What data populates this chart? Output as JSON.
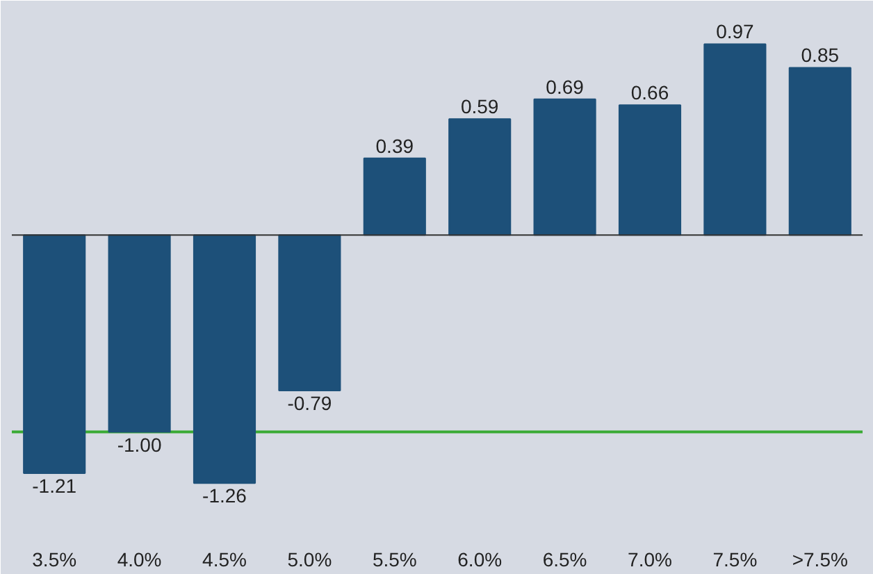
{
  "chart_data": {
    "type": "bar",
    "categories": [
      "3.5%",
      "4.0%",
      "4.5%",
      "5.0%",
      "5.5%",
      "6.0%",
      "6.5%",
      "7.0%",
      "7.5%",
      ">7.5%"
    ],
    "values": [
      -1.21,
      -1.0,
      -1.26,
      -0.79,
      0.39,
      0.59,
      0.69,
      0.66,
      0.97,
      0.85
    ],
    "value_labels": [
      "-1.21",
      "-1.00",
      "-1.26",
      "-0.79",
      "0.39",
      "0.59",
      "0.69",
      "0.66",
      "0.97",
      "0.85"
    ],
    "color": "#1d5079",
    "ylim": [
      -1.45,
      1.12
    ],
    "grid": false,
    "ref_lines": [
      {
        "axis": "y",
        "value": -1.0,
        "label": null,
        "color": "#3aaa35"
      }
    ]
  }
}
